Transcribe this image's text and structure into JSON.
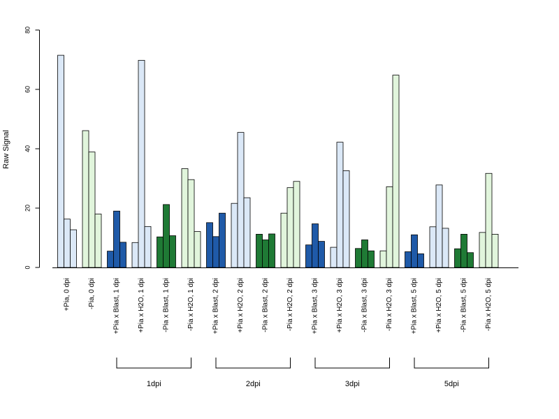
{
  "chart_data": {
    "type": "bar",
    "ylabel": "Raw Signal",
    "ylim": [
      0,
      80
    ],
    "yticks": [
      0,
      20,
      40,
      60,
      80
    ],
    "grid": false,
    "colors": {
      "plus_water": "#dbe8f7",
      "minus_water": "#e1f5dc",
      "plus_blast": "#1f5aa8",
      "minus_blast": "#1f7a35"
    },
    "groups": [
      {
        "label": "+Pia, 0 dpi",
        "color_key": "plus_water",
        "values": [
          71.5,
          16.3,
          12.7
        ]
      },
      {
        "label": "-Pia, 0 dpi",
        "color_key": "minus_water",
        "values": [
          46.1,
          38.9,
          18.0
        ]
      },
      {
        "label": "+Pia x Blast, 1 dpi",
        "color_key": "plus_blast",
        "values": [
          5.5,
          19.0,
          8.5
        ]
      },
      {
        "label": "+Pia x H2O, 1 dpi",
        "color_key": "plus_water",
        "values": [
          8.4,
          69.8,
          13.8
        ]
      },
      {
        "label": "-Pia x Blast, 1 dpi",
        "color_key": "minus_blast",
        "values": [
          10.3,
          21.2,
          10.7
        ]
      },
      {
        "label": "-Pia x H2O, 1 dpi",
        "color_key": "minus_water",
        "values": [
          33.3,
          29.6,
          12.1
        ]
      },
      {
        "label": "+Pia x Blast, 2 dpi",
        "color_key": "plus_blast",
        "values": [
          15.1,
          10.4,
          18.3
        ]
      },
      {
        "label": "+Pia x H2O, 2 dpi",
        "color_key": "plus_water",
        "values": [
          21.6,
          45.5,
          23.5
        ]
      },
      {
        "label": "-Pia x Blast, 2 dpi",
        "color_key": "minus_blast",
        "values": [
          11.2,
          9.3,
          11.3
        ]
      },
      {
        "label": "-Pia x H2O, 2 dpi",
        "color_key": "minus_water",
        "values": [
          18.3,
          26.9,
          29.0
        ]
      },
      {
        "label": "+Pia x Blast, 3 dpi",
        "color_key": "plus_blast",
        "values": [
          7.6,
          14.7,
          8.8
        ]
      },
      {
        "label": "+Pia x H2O, 3 dpi",
        "color_key": "plus_water",
        "values": [
          6.8,
          42.2,
          32.6
        ]
      },
      {
        "label": "-Pia x Blast, 3 dpi",
        "color_key": "minus_blast",
        "values": [
          6.4,
          9.3,
          5.6
        ]
      },
      {
        "label": "-Pia x H2O, 3 dpi",
        "color_key": "minus_water",
        "values": [
          5.6,
          27.2,
          64.8
        ]
      },
      {
        "label": "+Pia x Blast, 5 dpi",
        "color_key": "plus_blast",
        "values": [
          5.3,
          11.0,
          4.6
        ]
      },
      {
        "label": "+Pia x H2O, 5 dpi",
        "color_key": "plus_water",
        "values": [
          13.7,
          27.8,
          13.2
        ]
      },
      {
        "label": "-Pia x Blast, 5 dpi",
        "color_key": "minus_blast",
        "values": [
          6.3,
          11.2,
          5.0
        ]
      },
      {
        "label": "-Pia x H2O, 5 dpi",
        "color_key": "minus_water",
        "values": [
          11.8,
          31.7,
          11.2
        ]
      }
    ],
    "timepoints": [
      {
        "label": "1dpi",
        "first_group": 2,
        "last_group": 5
      },
      {
        "label": "2dpi",
        "first_group": 6,
        "last_group": 9
      },
      {
        "label": "3dpi",
        "first_group": 10,
        "last_group": 13
      },
      {
        "label": "5dpi",
        "first_group": 14,
        "last_group": 17
      }
    ]
  }
}
